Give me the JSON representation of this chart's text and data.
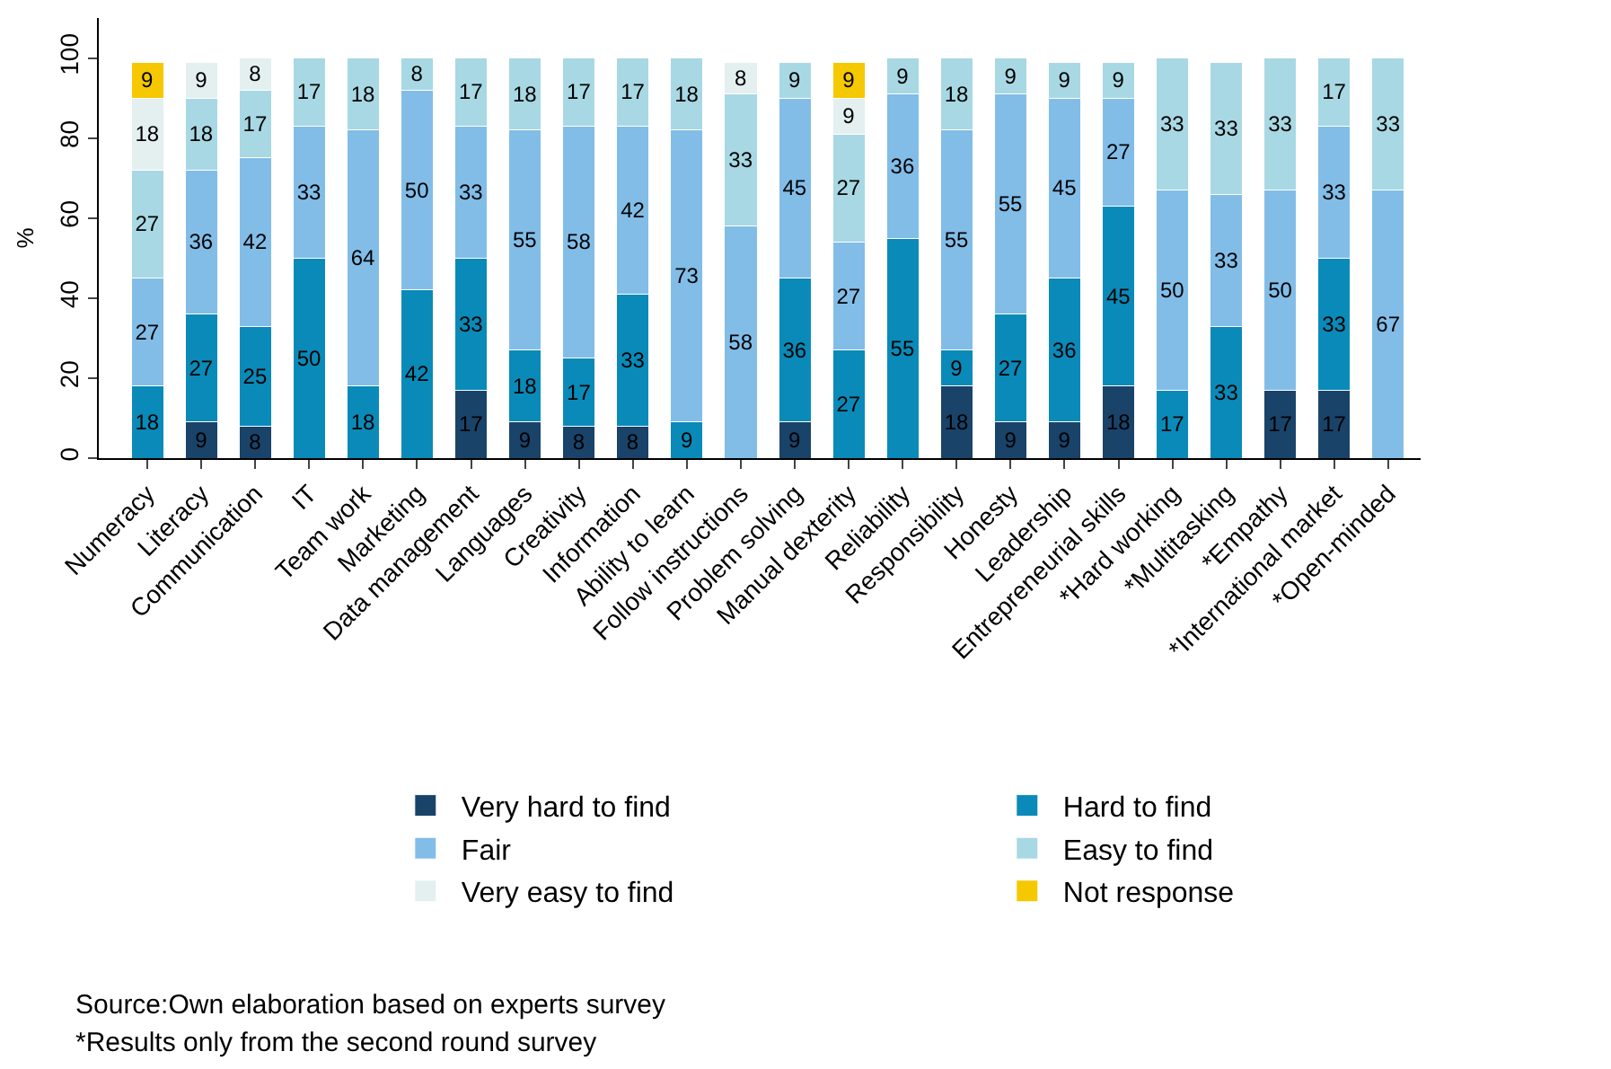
{
  "chart_data": {
    "type": "bar",
    "stacked": true,
    "data_labels": true,
    "categories": [
      "Numeracy",
      "Literacy",
      "Communication",
      "IT",
      "Team work",
      "Marketing",
      "Data management",
      "Languages",
      "Creativity",
      "Information",
      "Ability to learn",
      "Follow instructions",
      "Problem solving",
      "Manual dexterity",
      "Reliability",
      "Responsibility",
      "Honesty",
      "Leadership",
      "Entrepreneurial skills",
      "*Hard working",
      "*Multitasking",
      "*Empathy",
      "*International market",
      "*Open-minded"
    ],
    "series": [
      {
        "name": "Very hard to find",
        "color": "#1a4369",
        "values": [
          null,
          9,
          8,
          null,
          null,
          null,
          17,
          9,
          8,
          8,
          null,
          null,
          9,
          null,
          null,
          18,
          9,
          9,
          18,
          null,
          null,
          17,
          17,
          null
        ]
      },
      {
        "name": "Hard to find",
        "color": "#0a8ab8",
        "values": [
          18,
          27,
          25,
          50,
          18,
          42,
          33,
          18,
          17,
          33,
          9,
          null,
          36,
          27,
          55,
          9,
          27,
          36,
          45,
          17,
          33,
          null,
          33,
          null
        ]
      },
      {
        "name": "Fair",
        "color": "#82bde8",
        "values": [
          27,
          36,
          42,
          33,
          64,
          50,
          33,
          55,
          58,
          42,
          73,
          58,
          45,
          27,
          36,
          55,
          55,
          45,
          27,
          50,
          33,
          50,
          33,
          67
        ]
      },
      {
        "name": "Easy to find",
        "color": "#a8d8e3",
        "values": [
          27,
          18,
          17,
          17,
          18,
          8,
          17,
          18,
          17,
          17,
          18,
          33,
          9,
          27,
          9,
          18,
          9,
          9,
          9,
          33,
          33,
          33,
          17,
          33
        ]
      },
      {
        "name": "Very easy to find",
        "color": "#e4eff0",
        "values": [
          18,
          9,
          8,
          null,
          null,
          null,
          null,
          null,
          null,
          null,
          null,
          8,
          null,
          9,
          null,
          null,
          null,
          null,
          null,
          null,
          null,
          null,
          null,
          null
        ]
      },
      {
        "name": "Not response",
        "color": "#f5c800",
        "values": [
          9,
          null,
          null,
          null,
          null,
          null,
          null,
          null,
          null,
          null,
          null,
          null,
          null,
          9,
          null,
          null,
          null,
          null,
          null,
          null,
          null,
          null,
          null,
          null
        ]
      }
    ],
    "ylabel": "%",
    "ylim": [
      0,
      110
    ],
    "yticks": [
      0,
      20,
      40,
      60,
      80,
      100
    ],
    "legend": "bottom",
    "annotations": [
      "Source:Own elaboration based on experts survey",
      "*Results only from the second round survey"
    ]
  }
}
